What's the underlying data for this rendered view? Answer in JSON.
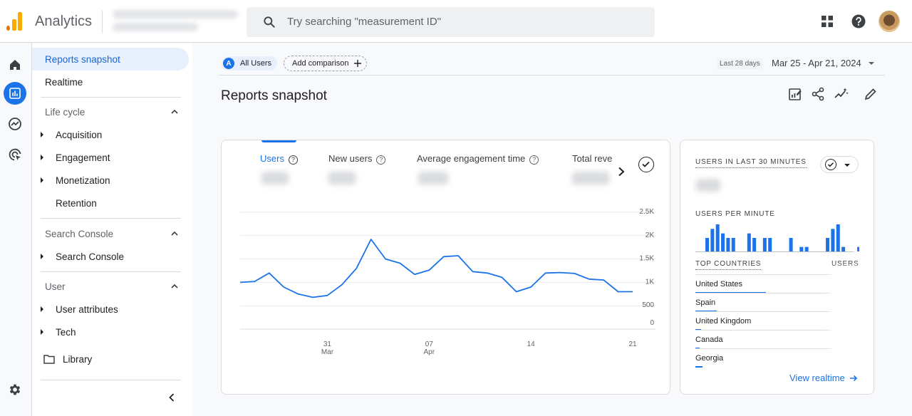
{
  "header": {
    "app_title": "Analytics",
    "search_placeholder": "Try searching \"measurement ID\""
  },
  "sidebar": {
    "items": [
      {
        "label": "Reports snapshot",
        "active": true
      },
      {
        "label": "Realtime"
      }
    ],
    "sections": [
      {
        "title": "Life cycle",
        "items": [
          "Acquisition",
          "Engagement",
          "Monetization",
          "Retention"
        ]
      },
      {
        "title": "Search Console",
        "items": [
          "Search Console"
        ]
      },
      {
        "title": "User",
        "items": [
          "User attributes",
          "Tech"
        ]
      }
    ],
    "library_label": "Library"
  },
  "main": {
    "comparison": {
      "badge": "A",
      "label": "All Users",
      "add_label": "Add comparison"
    },
    "date": {
      "period_label": "Last 28 days",
      "range": "Mar 25 - Apr 21, 2024"
    },
    "page_title": "Reports snapshot"
  },
  "overview_card": {
    "metric_tabs": [
      "Users",
      "New users",
      "Average engagement time",
      "Total reve"
    ],
    "active_metric": "Users",
    "chart_data": {
      "type": "line",
      "series": [
        {
          "values": [
            1000,
            1020,
            1200,
            900,
            750,
            680,
            720,
            950,
            1300,
            1920,
            1500,
            1410,
            1170,
            1260,
            1550,
            1570,
            1230,
            1200,
            1110,
            800,
            900,
            1200,
            1210,
            1190,
            1070,
            1050,
            800,
            800
          ]
        }
      ],
      "x_start": "2024-03-25",
      "x_end": "2024-04-21",
      "x_ticks": [
        {
          "day": "31",
          "month": "Mar"
        },
        {
          "day": "07",
          "month": "Apr"
        },
        {
          "day": "14",
          "month": ""
        },
        {
          "day": "21",
          "month": ""
        }
      ],
      "y_ticks": [
        "2.5K",
        "2K",
        "1.5K",
        "1K",
        "500",
        "0"
      ],
      "ylim": [
        0,
        2500
      ],
      "grid": true,
      "color": "#1a73e8"
    }
  },
  "realtime_card": {
    "users_last_30_label": "USERS IN LAST 30 MINUTES",
    "users_per_minute_label": "USERS PER MINUTE",
    "bar_data": [
      0,
      0,
      0,
      0,
      0,
      0,
      0,
      0,
      0,
      0,
      0,
      0,
      0,
      0,
      0,
      0,
      0,
      0,
      0,
      0,
      0,
      0,
      0,
      0,
      0,
      0,
      0,
      0,
      0,
      0
    ],
    "minute_bars": [
      3,
      5,
      6,
      4,
      3,
      3,
      0,
      0,
      4,
      3,
      0,
      3,
      3,
      0,
      0,
      0,
      3,
      0,
      1,
      1,
      0,
      0,
      0,
      3,
      5,
      6,
      1,
      0,
      0,
      1
    ],
    "top_countries_label": "TOP COUNTRIES",
    "users_col_label": "USERS",
    "countries": [
      {
        "name": "United States",
        "share": 0.52
      },
      {
        "name": "Spain",
        "share": 0.16
      },
      {
        "name": "United Kingdom",
        "share": 0.04
      },
      {
        "name": "Canada",
        "share": 0.03
      },
      {
        "name": "Georgia",
        "share": 0.05
      }
    ],
    "view_realtime_label": "View realtime"
  },
  "colors": {
    "accent": "#1a73e8",
    "active_nav_bg": "#e8f0fe"
  }
}
